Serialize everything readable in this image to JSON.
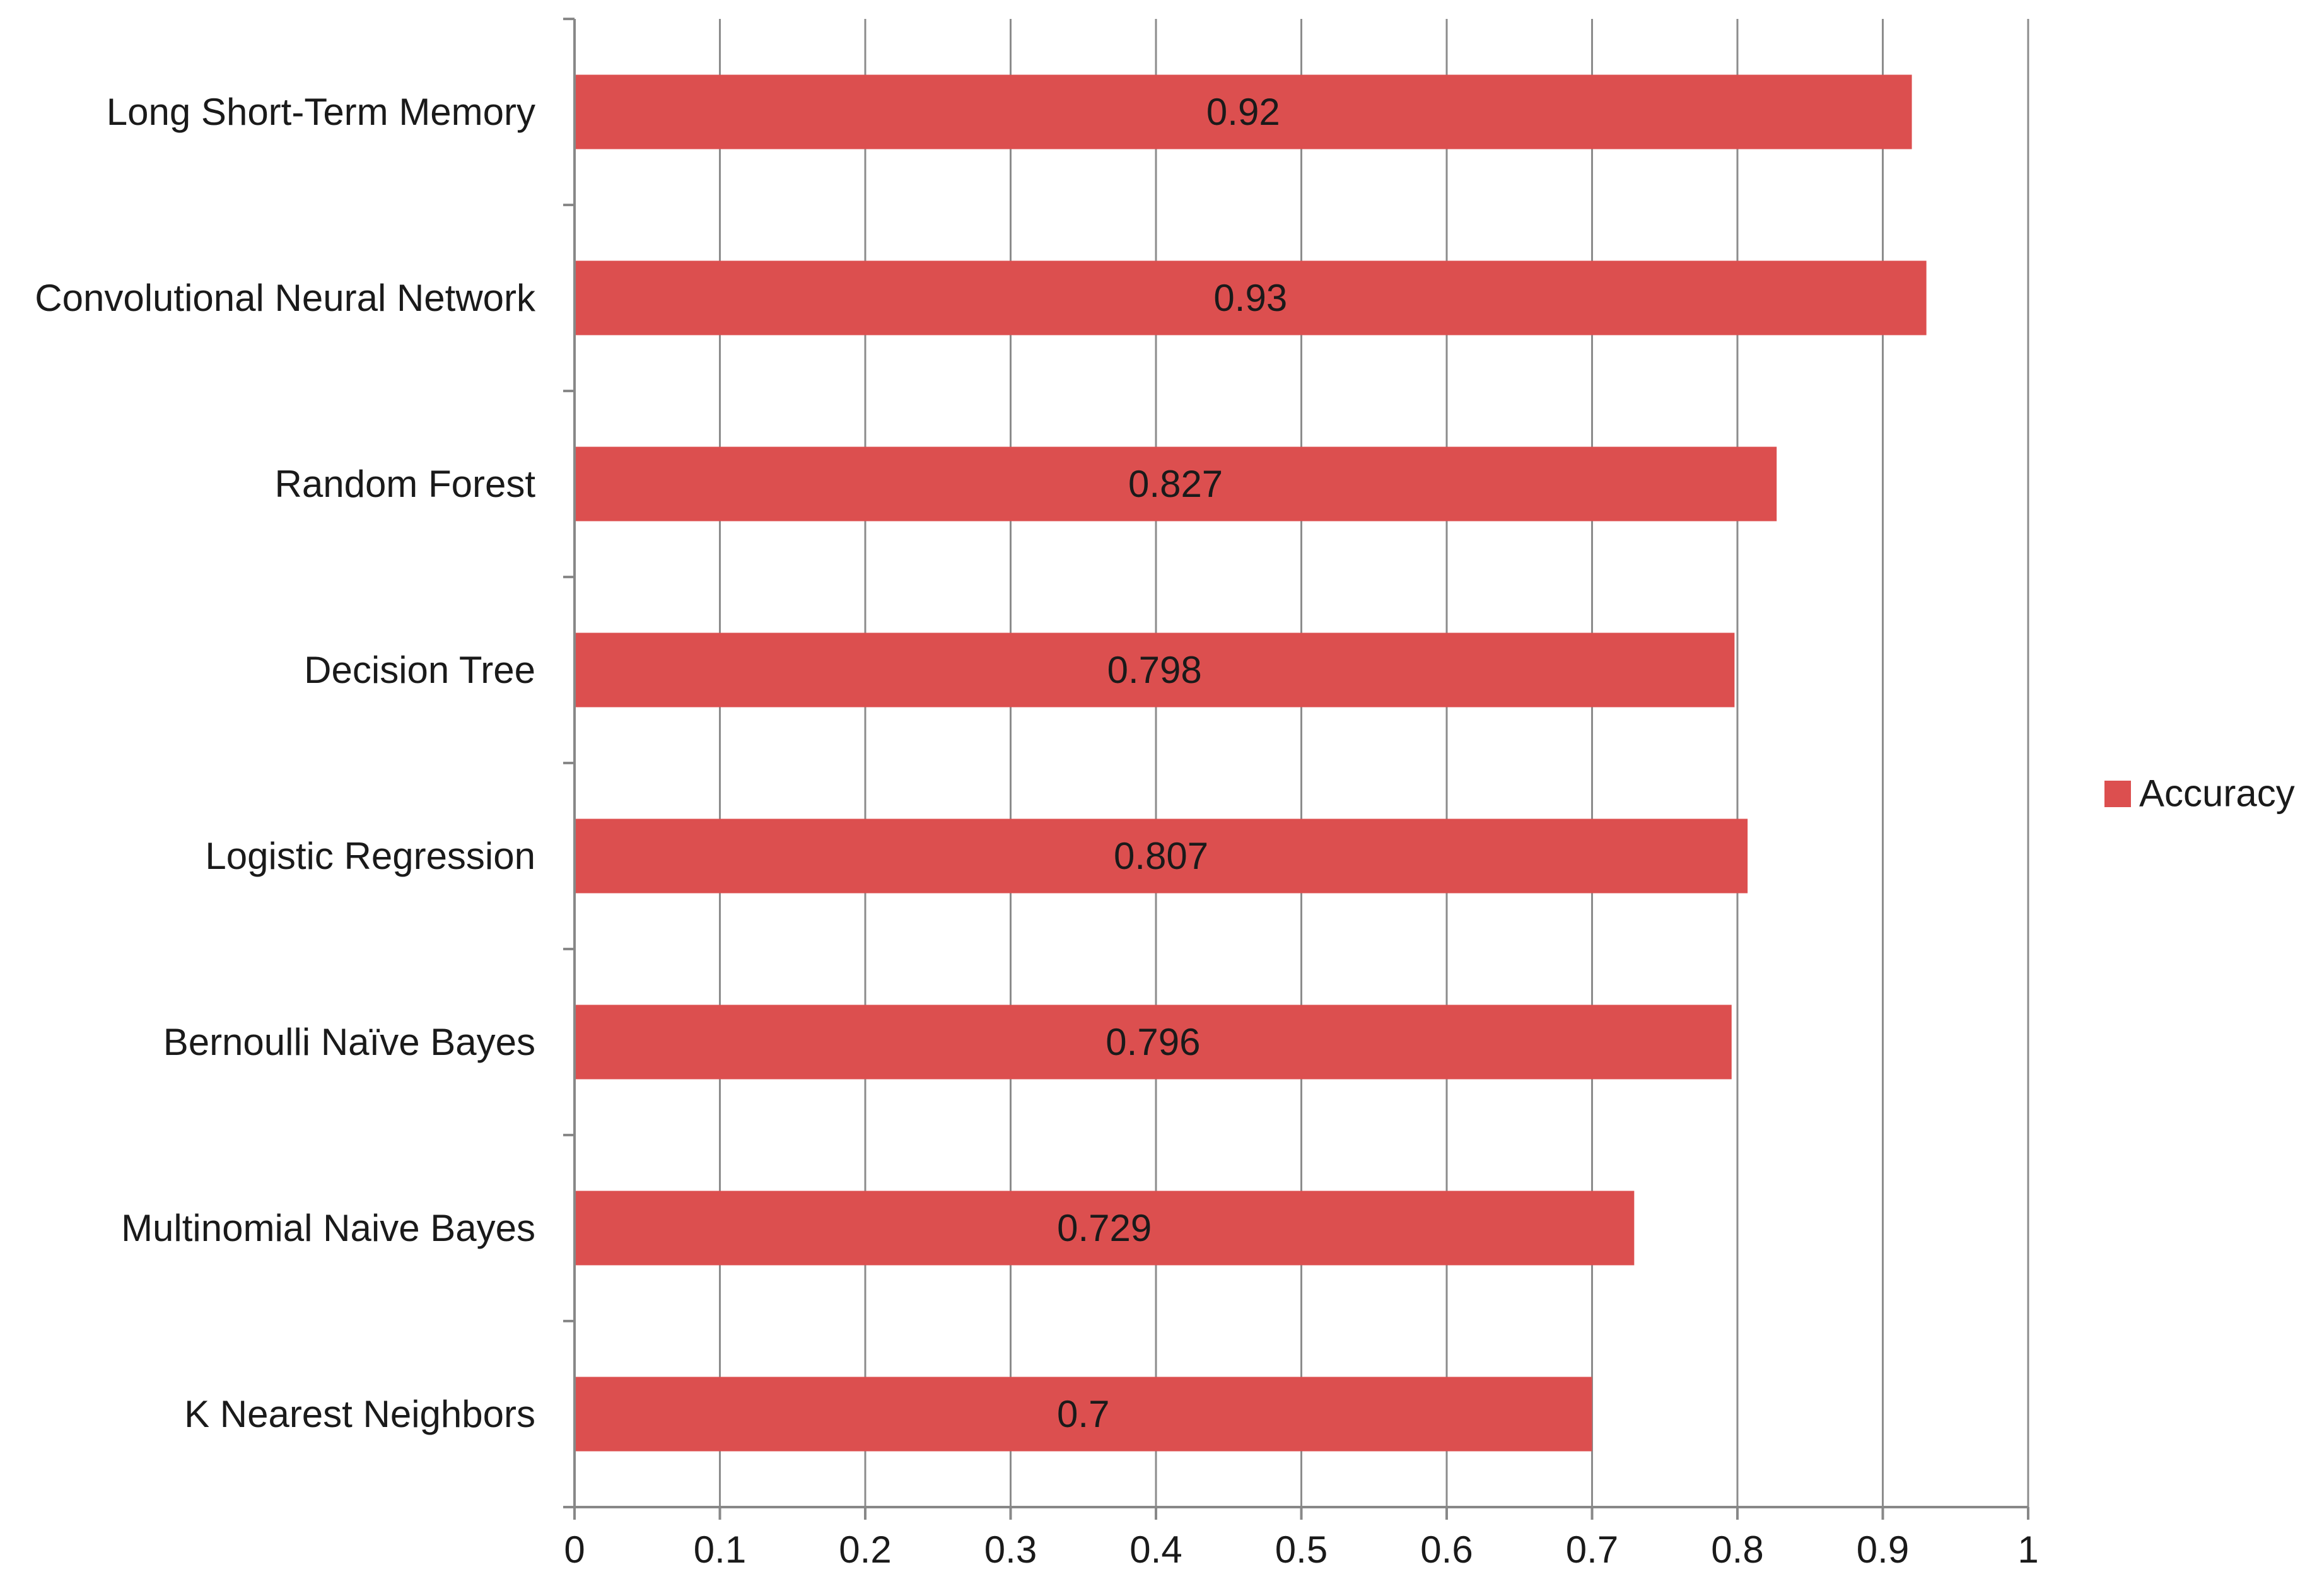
{
  "chart_data": {
    "type": "bar",
    "orientation": "horizontal",
    "title": "",
    "xlabel": "",
    "ylabel": "",
    "categories": [
      "Long Short-Term Memory",
      "Convolutional Neural Network",
      "Random Forest",
      "Decision Tree",
      "Logistic Regression",
      "Bernoulli Naïve Bayes",
      "Multinomial Naive Bayes",
      "K Nearest Neighbors"
    ],
    "series": [
      {
        "name": "Accuracy",
        "color": "#dc4f4f",
        "values": [
          0.92,
          0.93,
          0.827,
          0.798,
          0.807,
          0.796,
          0.729,
          0.7
        ],
        "data_labels": [
          "0.92",
          "0.93",
          "0.827",
          "0.798",
          "0.807",
          "0.796",
          "0.729",
          "0.7"
        ]
      }
    ],
    "xlim": [
      0,
      1
    ],
    "xticks": [
      0,
      0.1,
      0.2,
      0.3,
      0.4,
      0.5,
      0.6,
      0.7,
      0.8,
      0.9,
      1
    ],
    "xtick_labels": [
      "0",
      "0.1",
      "0.2",
      "0.3",
      "0.4",
      "0.5",
      "0.6",
      "0.7",
      "0.8",
      "0.9",
      "1"
    ],
    "grid": "vertical",
    "legend": {
      "position": "right",
      "entries": [
        "Accuracy"
      ]
    }
  }
}
